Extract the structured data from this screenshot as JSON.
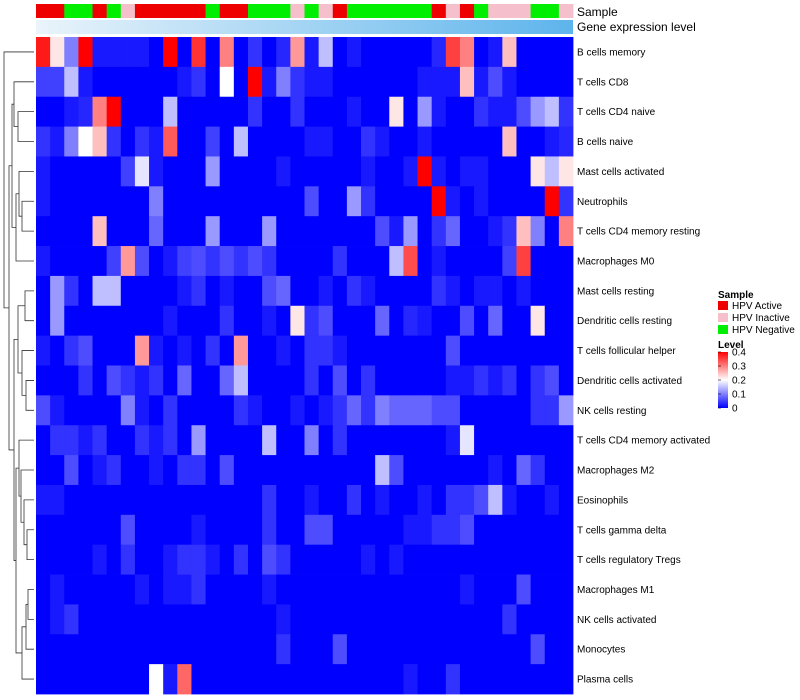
{
  "chart_data": {
    "type": "heatmap",
    "title": "",
    "column_count": 38,
    "annotations": [
      {
        "name": "Sample",
        "key": "sample"
      },
      {
        "name": "Gene expression level",
        "key": "gradient"
      }
    ],
    "sample_groups": [
      "A",
      "A",
      "N",
      "N",
      "A",
      "N",
      "I",
      "A",
      "A",
      "A",
      "A",
      "A",
      "N",
      "A",
      "A",
      "N",
      "N",
      "N",
      "I",
      "N",
      "I",
      "A",
      "N",
      "N",
      "N",
      "N",
      "N",
      "N",
      "A",
      "I",
      "A",
      "N",
      "I",
      "I",
      "I",
      "N",
      "N",
      "I"
    ],
    "group_colors": {
      "A": "#ee0000",
      "I": "#f5c0cb",
      "N": "#00ee00"
    },
    "rows": [
      "B cells memory",
      "T cells CD8",
      "T cells CD4 naive",
      "B cells naive",
      "Mast cells activated",
      "Neutrophils",
      "T cells CD4 memory resting",
      "Macrophages M0",
      "Mast cells resting",
      "Dendritic cells resting",
      "T cells follicular helper",
      "Dendritic cells activated",
      "NK cells resting",
      "T cells CD4 memory activated",
      "Macrophages M2",
      "Eosinophils",
      "T cells gamma delta",
      "T cells regulatory  Tregs",
      "Macrophages M1",
      "NK cells activated",
      "Monocytes",
      "Plasma cells"
    ],
    "values": [
      [
        0.38,
        0.22,
        0.1,
        0.4,
        0.02,
        0.02,
        0.02,
        0.02,
        0.0,
        0.4,
        0.0,
        0.36,
        0.0,
        0.3,
        0.0,
        0.04,
        0.0,
        0.03,
        0.28,
        0.02,
        0.15,
        0.0,
        0.02,
        0.0,
        0.0,
        0.0,
        0.0,
        0.0,
        0.03,
        0.35,
        0.3,
        0.0,
        0.02,
        0.25,
        0.0,
        0.0,
        0.0,
        0.0
      ],
      [
        0.05,
        0.05,
        0.15,
        0.02,
        0.0,
        0.0,
        0.0,
        0.0,
        0.0,
        0.0,
        0.02,
        0.04,
        0.0,
        0.2,
        0.0,
        0.4,
        0.02,
        0.1,
        0.04,
        0.02,
        0.02,
        0.0,
        0.0,
        0.0,
        0.0,
        0.0,
        0.0,
        0.02,
        0.02,
        0.02,
        0.25,
        0.02,
        0.06,
        0.02,
        0.0,
        0.0,
        0.0,
        0.0
      ],
      [
        0.0,
        0.0,
        0.02,
        0.03,
        0.3,
        0.4,
        0.0,
        0.0,
        0.0,
        0.15,
        0.0,
        0.0,
        0.0,
        0.0,
        0.0,
        0.04,
        0.0,
        0.0,
        0.04,
        0.0,
        0.0,
        0.0,
        0.02,
        0.0,
        0.0,
        0.22,
        0.0,
        0.12,
        0.02,
        0.0,
        0.0,
        0.04,
        0.02,
        0.02,
        0.06,
        0.12,
        0.15,
        0.04
      ],
      [
        0.04,
        0.02,
        0.1,
        0.2,
        0.25,
        0.04,
        0.0,
        0.04,
        0.02,
        0.33,
        0.0,
        0.0,
        0.05,
        0.0,
        0.15,
        0.0,
        0.0,
        0.0,
        0.0,
        0.02,
        0.02,
        0.0,
        0.0,
        0.04,
        0.02,
        0.0,
        0.0,
        0.02,
        0.0,
        0.0,
        0.0,
        0.0,
        0.0,
        0.25,
        0.0,
        0.0,
        0.02,
        0.03
      ],
      [
        0.02,
        0.0,
        0.0,
        0.0,
        0.0,
        0.0,
        0.05,
        0.18,
        0.02,
        0.0,
        0.0,
        0.0,
        0.12,
        0.0,
        0.0,
        0.0,
        0.0,
        0.02,
        0.0,
        0.0,
        0.0,
        0.0,
        0.0,
        0.02,
        0.0,
        0.0,
        0.02,
        0.4,
        0.02,
        0.0,
        0.02,
        0.02,
        0.0,
        0.0,
        0.0,
        0.22,
        0.15,
        0.22
      ],
      [
        0.02,
        0.0,
        0.0,
        0.0,
        0.0,
        0.0,
        0.0,
        0.0,
        0.1,
        0.0,
        0.0,
        0.0,
        0.0,
        0.0,
        0.0,
        0.0,
        0.0,
        0.0,
        0.0,
        0.06,
        0.0,
        0.0,
        0.12,
        0.04,
        0.0,
        0.0,
        0.0,
        0.0,
        0.4,
        0.02,
        0.0,
        0.02,
        0.0,
        0.0,
        0.0,
        0.0,
        0.4,
        0.04
      ],
      [
        0.0,
        0.0,
        0.0,
        0.0,
        0.25,
        0.0,
        0.0,
        0.0,
        0.08,
        0.0,
        0.0,
        0.0,
        0.12,
        0.0,
        0.0,
        0.0,
        0.12,
        0.0,
        0.0,
        0.0,
        0.0,
        0.0,
        0.0,
        0.0,
        0.06,
        0.02,
        0.12,
        0.0,
        0.04,
        0.08,
        0.0,
        0.0,
        0.02,
        0.04,
        0.25,
        0.1,
        0.0,
        0.3
      ],
      [
        0.02,
        0.0,
        0.0,
        0.0,
        0.0,
        0.05,
        0.28,
        0.06,
        0.0,
        0.02,
        0.05,
        0.06,
        0.04,
        0.06,
        0.04,
        0.06,
        0.04,
        0.0,
        0.0,
        0.0,
        0.0,
        0.04,
        0.0,
        0.0,
        0.0,
        0.15,
        0.34,
        0.0,
        0.02,
        0.0,
        0.0,
        0.0,
        0.0,
        0.05,
        0.35,
        0.0,
        0.0,
        0.0
      ],
      [
        0.0,
        0.12,
        0.04,
        0.0,
        0.15,
        0.15,
        0.0,
        0.0,
        0.0,
        0.0,
        0.02,
        0.04,
        0.0,
        0.02,
        0.0,
        0.0,
        0.06,
        0.08,
        0.0,
        0.0,
        0.02,
        0.0,
        0.04,
        0.02,
        0.0,
        0.0,
        0.0,
        0.0,
        0.04,
        0.02,
        0.0,
        0.02,
        0.02,
        0.0,
        0.02,
        0.0,
        0.0,
        0.0
      ],
      [
        0.0,
        0.12,
        0.0,
        0.0,
        0.0,
        0.0,
        0.0,
        0.0,
        0.0,
        0.02,
        0.0,
        0.0,
        0.0,
        0.04,
        0.0,
        0.0,
        0.02,
        0.0,
        0.22,
        0.04,
        0.06,
        0.0,
        0.0,
        0.0,
        0.08,
        0.0,
        0.03,
        0.02,
        0.0,
        0.0,
        0.06,
        0.0,
        0.08,
        0.0,
        0.0,
        0.22,
        0.0,
        0.0
      ],
      [
        0.02,
        0.0,
        0.04,
        0.06,
        0.0,
        0.0,
        0.0,
        0.28,
        0.02,
        0.0,
        0.02,
        0.0,
        0.04,
        0.0,
        0.28,
        0.0,
        0.0,
        0.02,
        0.0,
        0.04,
        0.04,
        0.02,
        0.0,
        0.0,
        0.0,
        0.0,
        0.0,
        0.0,
        0.0,
        0.06,
        0.0,
        0.0,
        0.0,
        0.0,
        0.0,
        0.0,
        0.0,
        0.0
      ],
      [
        0.0,
        0.0,
        0.0,
        0.04,
        0.0,
        0.06,
        0.04,
        0.02,
        0.04,
        0.0,
        0.08,
        0.0,
        0.0,
        0.08,
        0.15,
        0.0,
        0.0,
        0.0,
        0.0,
        0.04,
        0.0,
        0.06,
        0.0,
        0.04,
        0.0,
        0.0,
        0.0,
        0.0,
        0.0,
        0.02,
        0.02,
        0.04,
        0.02,
        0.04,
        0.0,
        0.04,
        0.06,
        0.0
      ],
      [
        0.06,
        0.02,
        0.0,
        0.0,
        0.0,
        0.0,
        0.1,
        0.02,
        0.0,
        0.04,
        0.0,
        0.0,
        0.0,
        0.0,
        0.04,
        0.02,
        0.0,
        0.0,
        0.02,
        0.0,
        0.02,
        0.04,
        0.08,
        0.04,
        0.1,
        0.08,
        0.08,
        0.08,
        0.06,
        0.06,
        0.0,
        0.0,
        0.0,
        0.0,
        0.0,
        0.04,
        0.04,
        0.12
      ],
      [
        0.0,
        0.04,
        0.04,
        0.02,
        0.04,
        0.0,
        0.0,
        0.04,
        0.02,
        0.04,
        0.0,
        0.12,
        0.0,
        0.0,
        0.0,
        0.0,
        0.15,
        0.0,
        0.0,
        0.1,
        0.0,
        0.04,
        0.0,
        0.0,
        0.0,
        0.0,
        0.0,
        0.0,
        0.0,
        0.02,
        0.18,
        0.0,
        0.0,
        0.0,
        0.0,
        0.0,
        0.0,
        0.0
      ],
      [
        0.0,
        0.0,
        0.06,
        0.0,
        0.02,
        0.04,
        0.0,
        0.0,
        0.02,
        0.0,
        0.04,
        0.04,
        0.0,
        0.06,
        0.0,
        0.0,
        0.0,
        0.0,
        0.0,
        0.0,
        0.0,
        0.0,
        0.0,
        0.0,
        0.15,
        0.06,
        0.0,
        0.0,
        0.0,
        0.0,
        0.0,
        0.0,
        0.02,
        0.0,
        0.08,
        0.04,
        0.0,
        0.0
      ],
      [
        0.02,
        0.02,
        0.0,
        0.0,
        0.0,
        0.0,
        0.0,
        0.0,
        0.0,
        0.0,
        0.0,
        0.0,
        0.0,
        0.0,
        0.0,
        0.0,
        0.04,
        0.0,
        0.0,
        0.02,
        0.0,
        0.0,
        0.04,
        0.0,
        0.02,
        0.0,
        0.0,
        0.02,
        0.0,
        0.04,
        0.04,
        0.06,
        0.15,
        0.02,
        0.0,
        0.0,
        0.02,
        0.0
      ],
      [
        0.0,
        0.0,
        0.0,
        0.0,
        0.0,
        0.0,
        0.06,
        0.0,
        0.0,
        0.0,
        0.0,
        0.02,
        0.0,
        0.0,
        0.0,
        0.0,
        0.04,
        0.0,
        0.0,
        0.06,
        0.06,
        0.0,
        0.0,
        0.0,
        0.0,
        0.0,
        0.02,
        0.02,
        0.04,
        0.04,
        0.06,
        0.0,
        0.0,
        0.0,
        0.0,
        0.0,
        0.0,
        0.0
      ],
      [
        0.0,
        0.0,
        0.0,
        0.0,
        0.02,
        0.0,
        0.04,
        0.0,
        0.0,
        0.02,
        0.04,
        0.04,
        0.02,
        0.0,
        0.04,
        0.0,
        0.06,
        0.04,
        0.0,
        0.0,
        0.0,
        0.0,
        0.0,
        0.02,
        0.0,
        0.02,
        0.0,
        0.0,
        0.0,
        0.0,
        0.0,
        0.0,
        0.0,
        0.0,
        0.0,
        0.0,
        0.0,
        0.0
      ],
      [
        0.0,
        0.02,
        0.0,
        0.0,
        0.0,
        0.0,
        0.0,
        0.02,
        0.0,
        0.02,
        0.02,
        0.04,
        0.0,
        0.0,
        0.0,
        0.0,
        0.02,
        0.0,
        0.0,
        0.0,
        0.0,
        0.0,
        0.0,
        0.0,
        0.0,
        0.0,
        0.0,
        0.0,
        0.0,
        0.0,
        0.02,
        0.0,
        0.0,
        0.0,
        0.06,
        0.0,
        0.0,
        0.0
      ],
      [
        0.0,
        0.02,
        0.04,
        0.0,
        0.0,
        0.0,
        0.0,
        0.0,
        0.0,
        0.0,
        0.0,
        0.0,
        0.0,
        0.0,
        0.0,
        0.0,
        0.0,
        0.02,
        0.0,
        0.0,
        0.0,
        0.0,
        0.0,
        0.0,
        0.0,
        0.0,
        0.0,
        0.0,
        0.0,
        0.0,
        0.0,
        0.0,
        0.0,
        0.04,
        0.0,
        0.0,
        0.0,
        0.0
      ],
      [
        0.0,
        0.0,
        0.0,
        0.0,
        0.0,
        0.0,
        0.0,
        0.0,
        0.0,
        0.0,
        0.0,
        0.0,
        0.0,
        0.0,
        0.0,
        0.0,
        0.0,
        0.04,
        0.0,
        0.0,
        0.0,
        0.06,
        0.0,
        0.0,
        0.0,
        0.0,
        0.0,
        0.0,
        0.0,
        0.0,
        0.0,
        0.0,
        0.0,
        0.0,
        0.0,
        0.06,
        0.0,
        0.0
      ],
      [
        0.0,
        0.0,
        0.0,
        0.0,
        0.0,
        0.0,
        0.0,
        0.0,
        0.2,
        0.02,
        0.32,
        0.0,
        0.0,
        0.0,
        0.0,
        0.0,
        0.0,
        0.0,
        0.0,
        0.0,
        0.0,
        0.0,
        0.0,
        0.0,
        0.0,
        0.0,
        0.02,
        0.0,
        0.0,
        0.04,
        0.0,
        0.0,
        0.0,
        0.0,
        0.0,
        0.0,
        0.0,
        0.0
      ]
    ],
    "color_scale": {
      "min": 0,
      "max": 0.4,
      "stops": [
        {
          "value": 0,
          "color": "#0000ff"
        },
        {
          "value": 0.2,
          "color": "#ffffff"
        },
        {
          "value": 0.4,
          "color": "#ff0000"
        }
      ]
    },
    "gradient_colors": [
      "#eaf4fb",
      "#5db4ec"
    ],
    "legend_sample": {
      "title": "Sample",
      "items": [
        {
          "label": "HPV Active",
          "color": "#ee0000"
        },
        {
          "label": "HPV Inactive",
          "color": "#f5c0cb"
        },
        {
          "label": "HPV Negative",
          "color": "#00ee00"
        }
      ]
    },
    "legend_level": {
      "title": "Level",
      "ticks": [
        0.4,
        0.3,
        0.2,
        0.1,
        0
      ]
    },
    "row_dendrogram": true
  }
}
